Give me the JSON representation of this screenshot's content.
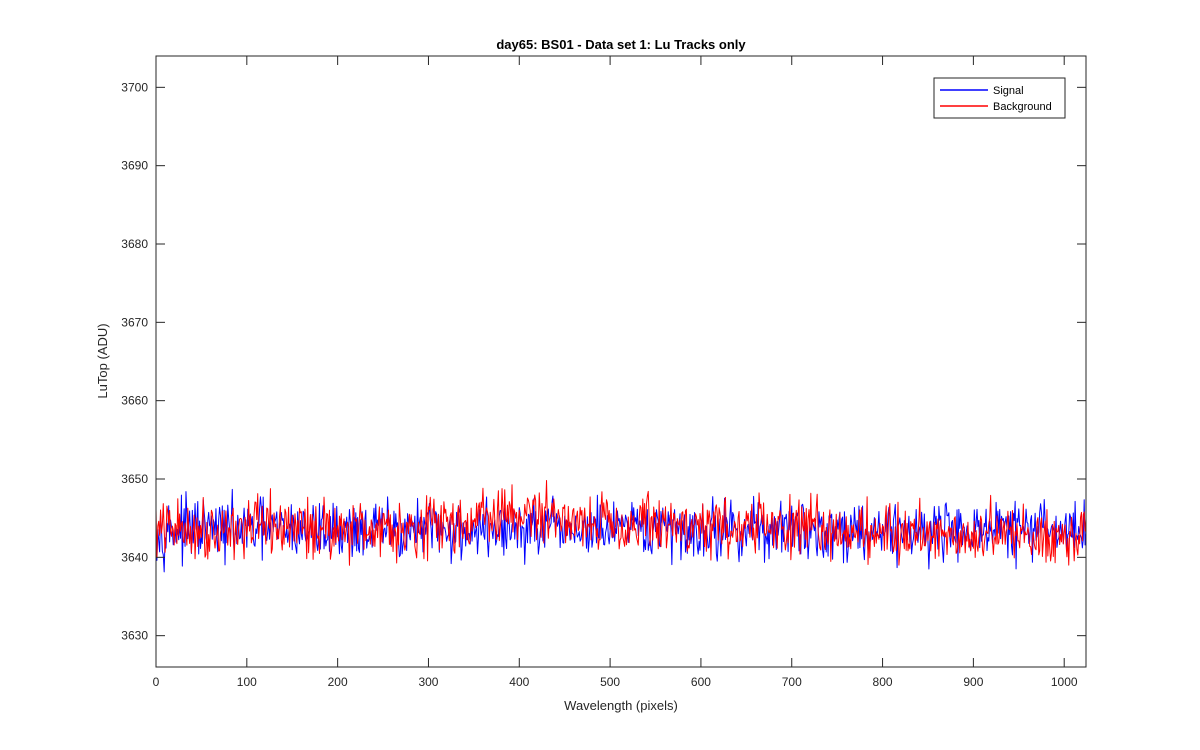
{
  "chart_data": {
    "type": "line",
    "title": "day65: BS01 - Data set 1: Lu Tracks only",
    "xlabel": "Wavelength (pixels)",
    "ylabel": "LuTop (ADU)",
    "xlim": [
      0,
      1024
    ],
    "ylim": [
      3626,
      3704
    ],
    "x_ticks": [
      0,
      100,
      200,
      300,
      400,
      500,
      600,
      700,
      800,
      900,
      1000
    ],
    "x_tick_labels": [
      "0",
      "100",
      "200",
      "300",
      "400",
      "500",
      "600",
      "700",
      "800",
      "900",
      "1000"
    ],
    "y_ticks": [
      3630,
      3640,
      3650,
      3660,
      3670,
      3680,
      3690,
      3700
    ],
    "y_tick_labels": [
      "3630",
      "3640",
      "3650",
      "3660",
      "3670",
      "3680",
      "3690",
      "3700"
    ],
    "grid": false,
    "legend_position": "top-right",
    "series": [
      {
        "name": "Signal",
        "color": "#0000ff",
        "description_visible": "hidden behind Background trace",
        "x_range": [
          0,
          1024
        ],
        "mean": 3643.5,
        "noise_range": 11
      },
      {
        "name": "Background",
        "color": "#ff0000",
        "x_range": [
          0,
          1024
        ],
        "mean_profile": [
          {
            "x": 0,
            "y": 3643.5
          },
          {
            "x": 100,
            "y": 3643.8
          },
          {
            "x": 200,
            "y": 3643.8
          },
          {
            "x": 300,
            "y": 3644.0
          },
          {
            "x": 380,
            "y": 3645.3
          },
          {
            "x": 410,
            "y": 3645.5
          },
          {
            "x": 500,
            "y": 3644.5
          },
          {
            "x": 600,
            "y": 3644.0
          },
          {
            "x": 700,
            "y": 3643.8
          },
          {
            "x": 800,
            "y": 3643.3
          },
          {
            "x": 900,
            "y": 3643.0
          },
          {
            "x": 1024,
            "y": 3642.8
          }
        ],
        "min": 3636.2,
        "max": 3653.3,
        "noise_range": 11
      }
    ]
  }
}
